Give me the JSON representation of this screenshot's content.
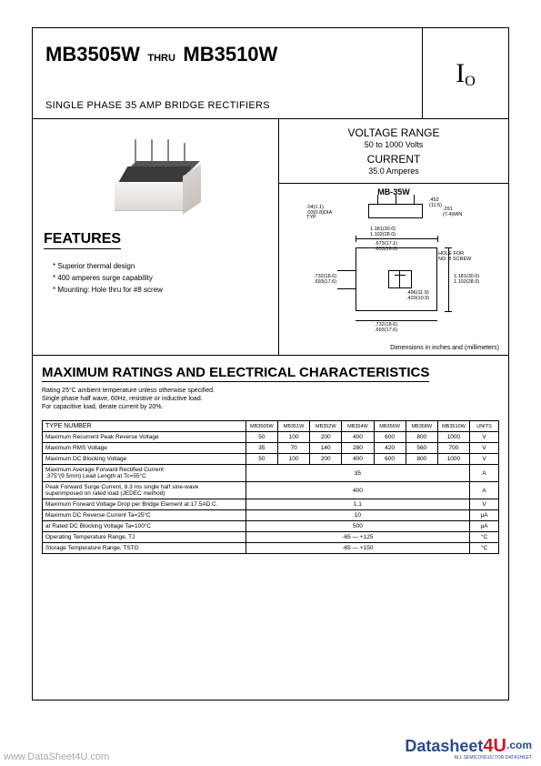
{
  "header": {
    "title_from": "MB3505W",
    "title_thru": "THRU",
    "title_to": "MB3510W",
    "subtitle": "SINGLE PHASE 35 AMP BRIDGE RECTIFIERS",
    "logo_symbol_main": "I",
    "logo_symbol_sub": "O"
  },
  "features": {
    "heading": "FEATURES",
    "items": [
      "* Superior thermal design",
      "* 400 amperes surge capability",
      "* Mounting: Hole thru for #8 screw"
    ]
  },
  "specs": {
    "voltage_label": "VOLTAGE RANGE",
    "voltage_value": "50 to 1000 Volts",
    "current_label": "CURRENT",
    "current_value": "35.0 Amperes"
  },
  "package_drawing": {
    "title": "MB-35W",
    "text_labels": {
      "t1": ".452\n(11.5)",
      "t2": ".04(1.1)\n.03(0.8)DIA\nTYP",
      "t3": ".291\n(7.4)MIN",
      "t4": "1.181(30.0)\n1.102(28.0)",
      "t5": ".673(17.1)\n.653(16.6)",
      "t6": "HOLE FOR\nNO. 8 SCREW",
      "t7": ".732(18.6)\n.693(17.6)",
      "t8": ".496(11.9)\n.429(10.9)",
      "t9": "1.181(30.0)\n1.102(28.0)",
      "t10": ".732(18.6)\n.693(17.6)"
    },
    "caption": "Dimensions in inches and (millimeters)"
  },
  "ratings": {
    "heading": "MAXIMUM RATINGS AND ELECTRICAL CHARACTERISTICS",
    "notes": [
      "Rating 25°C ambient temperature unless otherwise specified.",
      "Single phase half wave, 60Hz, resistive or inductive load.",
      "For capacitive load, derate current by 20%."
    ],
    "columns": [
      "TYPE NUMBER",
      "MB3505W",
      "MB351W",
      "MB352W",
      "MB354W",
      "MB356W",
      "MB358W",
      "MB3510W",
      "UNITS"
    ],
    "rows": [
      {
        "label": "Maximum Recurrent Peak Reverse Voltage",
        "vals": [
          "50",
          "100",
          "200",
          "400",
          "600",
          "800",
          "1000"
        ],
        "unit": "V"
      },
      {
        "label": "Maximum RMS Voltage",
        "vals": [
          "35",
          "70",
          "140",
          "280",
          "420",
          "560",
          "700"
        ],
        "unit": "V"
      },
      {
        "label": "Maximum DC Blocking Voltage",
        "vals": [
          "50",
          "100",
          "200",
          "400",
          "600",
          "800",
          "1000"
        ],
        "unit": "V"
      },
      {
        "label": "Maximum Average Forward Rectified Current\n.375\"(9.5mm) Lead Length at Tc=55°C",
        "span": "35",
        "unit": "A"
      },
      {
        "label": "Peak Forward Surge Current, 8.3 ms single half sine-wave\nsuperimposed on rated load (JEDEC method)",
        "span": "400",
        "unit": "A"
      },
      {
        "label": "Maximum Forward Voltage Drop per Bridge Element at 17.5AD.C.",
        "span": "1.1",
        "unit": "V"
      },
      {
        "label": "Maximum DC Reverse Current          Ta=25°C",
        "span": "10",
        "unit": "µA"
      },
      {
        "label": "at Rated DC Blocking Voltage          Ta=100°C",
        "span": "500",
        "unit": "µA"
      },
      {
        "label": "Operating Temperature Range, TJ",
        "span": "-65 — +125",
        "unit": "°C"
      },
      {
        "label": "Storage Temperature Range, TSTG",
        "span": "-65 — +150",
        "unit": "°C"
      }
    ]
  },
  "footer": {
    "watermark": "www.DataSheet4U.com",
    "brand_1": "Datasheet",
    "brand_2": "4U",
    "brand_3": ".com",
    "tagline": "ALL SEMICONDUCTOR DATASHEET"
  },
  "colors": {
    "border": "#000000",
    "background": "#ffffff",
    "watermark_gray": "#a8a8a8",
    "brand_blue": "#2a4b8d",
    "brand_red": "#cc172c"
  }
}
